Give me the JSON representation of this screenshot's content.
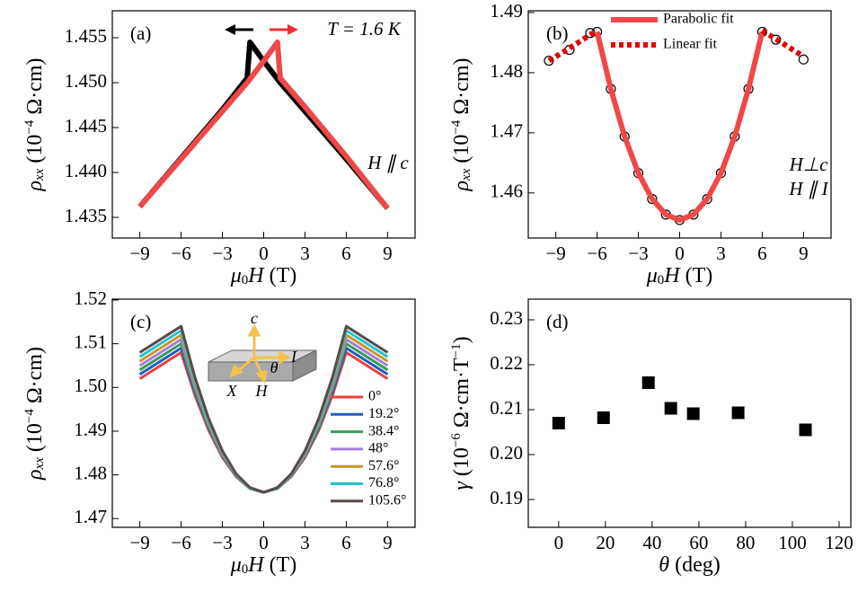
{
  "chart_data": [
    {
      "type": "line",
      "label": "(a)",
      "xlabel": [
        {
          "text": "μ",
          "style": "italic"
        },
        {
          "text": "0",
          "shift": "sub"
        },
        {
          "text": "H",
          "style": "italic"
        },
        {
          "text": " (T)"
        }
      ],
      "ylabel": [
        {
          "text": "ρ",
          "style": "italic"
        },
        {
          "text": "xx",
          "style": "italic",
          "shift": "sub"
        },
        {
          "text": " (10"
        },
        {
          "text": "−4",
          "shift": "sup"
        },
        {
          "text": " Ω·cm)"
        }
      ],
      "annotations": [
        "T = 1.6 K",
        "H ∥ c"
      ],
      "x": [
        -9,
        -6,
        -3,
        -1.2,
        -1,
        0,
        1,
        1.2,
        3,
        6,
        9
      ],
      "series": [
        {
          "color": "#000000",
          "values": [
            1.4362,
            1.4416,
            1.447,
            1.4505,
            1.4545,
            1.4524,
            1.4504,
            1.45,
            1.4468,
            1.4415,
            1.436
          ]
        },
        {
          "color": "#f04848",
          "values": [
            1.4362,
            1.4415,
            1.4468,
            1.45,
            1.4504,
            1.4524,
            1.4545,
            1.4505,
            1.4473,
            1.4418,
            1.436
          ]
        }
      ],
      "xlim": [
        -11,
        11
      ],
      "ylim": [
        1.4327,
        1.458
      ],
      "xticks": [
        {
          "value": -9,
          "label": "−9"
        },
        {
          "value": -6,
          "label": "−6"
        },
        {
          "value": -3,
          "label": "−3"
        },
        0,
        3,
        6,
        9
      ],
      "yticks": [
        {
          "value": 1.435,
          "label": "1.435"
        },
        {
          "value": 1.44,
          "label": "1.440"
        },
        {
          "value": 1.445,
          "label": "1.445"
        },
        {
          "value": 1.45,
          "label": "1.450"
        },
        {
          "value": 1.455,
          "label": "1.455"
        }
      ]
    },
    {
      "type": "line",
      "label": "(b)",
      "xlabel": [
        {
          "text": "μ",
          "style": "italic"
        },
        {
          "text": "0",
          "shift": "sub"
        },
        {
          "text": "H",
          "style": "italic"
        },
        {
          "text": " (T)"
        }
      ],
      "ylabel": [
        {
          "text": "ρ",
          "style": "italic"
        },
        {
          "text": "xx",
          "style": "italic",
          "shift": "sub"
        },
        {
          "text": " (10"
        },
        {
          "text": "−4",
          "shift": "sup"
        },
        {
          "text": " Ω·cm)"
        }
      ],
      "annotations": [
        "H⊥c",
        "H ∥ I"
      ],
      "x": [
        -9.5,
        -8,
        -6.5,
        -6,
        -5,
        -4,
        -3,
        -2,
        -1,
        0,
        1,
        2,
        3,
        4,
        5,
        6,
        7,
        9
      ],
      "series": [
        {
          "color": "#000000",
          "marker": "o",
          "values": [
            1.482,
            1.4838,
            1.4866,
            1.4868,
            1.4773,
            1.4694,
            1.4633,
            1.459,
            1.4564,
            1.4555,
            1.4564,
            1.459,
            1.4633,
            1.4694,
            1.4773,
            1.4868,
            1.4855,
            1.4822
          ]
        },
        {
          "name": "Parabolic fit",
          "color": "#f04848",
          "values": [
            null,
            null,
            null,
            1.4868,
            1.4773,
            1.4694,
            1.4633,
            1.459,
            1.4564,
            1.4555,
            1.4564,
            1.459,
            1.4633,
            1.4694,
            1.4773,
            1.4868,
            null,
            null
          ]
        },
        {
          "name": "Linear fit",
          "color": "#e00000",
          "style": "dotted",
          "values": [
            1.482,
            1.4841,
            1.4863,
            1.487,
            null,
            null,
            null,
            null,
            null,
            null,
            null,
            null,
            null,
            null,
            null,
            1.487,
            1.4856,
            1.4827
          ]
        }
      ],
      "xlim": [
        -11,
        11
      ],
      "ylim": [
        1.4525,
        1.4903
      ],
      "xticks": [
        {
          "value": -9,
          "label": "−9"
        },
        {
          "value": -6,
          "label": "−6"
        },
        {
          "value": -3,
          "label": "−3"
        },
        0,
        3,
        6,
        9
      ],
      "yticks": [
        1.46,
        1.47,
        1.48,
        1.49
      ]
    },
    {
      "type": "line",
      "label": "(c)",
      "xlabel": [
        {
          "text": "μ",
          "style": "italic"
        },
        {
          "text": "0",
          "shift": "sub"
        },
        {
          "text": "H",
          "style": "italic"
        },
        {
          "text": " (T)"
        }
      ],
      "ylabel": [
        {
          "text": "ρ",
          "style": "italic"
        },
        {
          "text": "xx",
          "style": "italic",
          "shift": "sub"
        },
        {
          "text": " (10"
        },
        {
          "text": "−4",
          "shift": "sup"
        },
        {
          "text": " Ω·cm)"
        }
      ],
      "inset_labels": [
        "c",
        "I",
        "θ",
        "X",
        "H"
      ],
      "x": [
        -9,
        -6,
        -5,
        -4,
        -3,
        -2,
        -1,
        0,
        1,
        2,
        3,
        4,
        5,
        6,
        9
      ],
      "series": [
        {
          "name": "0°",
          "color": "#e8413c",
          "values": [
            1.502,
            1.508,
            1.4982,
            1.4902,
            1.484,
            1.4796,
            1.4769,
            1.476,
            1.4769,
            1.4796,
            1.484,
            1.4902,
            1.4982,
            1.508,
            1.502
          ]
        },
        {
          "name": "19.2°",
          "color": "#1f5fbf",
          "values": [
            1.503,
            1.509,
            1.4989,
            1.4907,
            1.4843,
            1.4797,
            1.4769,
            1.476,
            1.4769,
            1.4797,
            1.4843,
            1.4907,
            1.4989,
            1.509,
            1.503
          ]
        },
        {
          "name": "38.4°",
          "color": "#3a9a5a",
          "values": [
            1.504,
            1.51,
            1.4996,
            1.4911,
            1.4845,
            1.4798,
            1.4769,
            1.476,
            1.4769,
            1.4798,
            1.4845,
            1.4911,
            1.4996,
            1.51,
            1.504
          ]
        },
        {
          "name": "48°",
          "color": "#a37fd6",
          "values": [
            1.505,
            1.511,
            1.5003,
            1.4916,
            1.4847,
            1.4799,
            1.477,
            1.476,
            1.477,
            1.4799,
            1.4847,
            1.4916,
            1.5003,
            1.511,
            1.505
          ]
        },
        {
          "name": "57.6°",
          "color": "#c8962a",
          "values": [
            1.506,
            1.512,
            1.501,
            1.492,
            1.485,
            1.48,
            1.477,
            1.476,
            1.477,
            1.48,
            1.485,
            1.492,
            1.501,
            1.512,
            1.506
          ]
        },
        {
          "name": "76.8°",
          "color": "#22c3d0",
          "values": [
            1.507,
            1.513,
            1.5017,
            1.4924,
            1.4853,
            1.4801,
            1.477,
            1.476,
            1.477,
            1.4801,
            1.4853,
            1.4924,
            1.5017,
            1.513,
            1.507
          ]
        },
        {
          "name": "105.6°",
          "color": "#5a4a48",
          "values": [
            1.508,
            1.514,
            1.5024,
            1.4929,
            1.4855,
            1.4802,
            1.4771,
            1.476,
            1.4771,
            1.4802,
            1.4855,
            1.4929,
            1.5024,
            1.514,
            1.508
          ]
        }
      ],
      "xlim": [
        -11,
        11
      ],
      "ylim": [
        1.468,
        1.5202
      ],
      "xticks": [
        {
          "value": -9,
          "label": "−9"
        },
        {
          "value": -6,
          "label": "−6"
        },
        {
          "value": -3,
          "label": "−3"
        },
        0,
        3,
        6,
        9
      ],
      "yticks": [
        1.47,
        1.48,
        1.49,
        {
          "value": 1.5,
          "label": "1.50"
        },
        1.51,
        1.52
      ]
    },
    {
      "type": "scatter",
      "label": "(d)",
      "xlabel": [
        {
          "text": "θ",
          "style": "italic"
        },
        {
          "text": " (deg)"
        }
      ],
      "ylabel": [
        {
          "text": "γ",
          "style": "italic"
        },
        {
          "text": " (10"
        },
        {
          "text": "−6",
          "shift": "sup"
        },
        {
          "text": " Ω·cm·T"
        },
        {
          "text": "−1",
          "shift": "sup"
        },
        {
          "text": ")"
        }
      ],
      "x": [
        0,
        19.2,
        38.4,
        48,
        57.6,
        76.8,
        105.6
      ],
      "series": [
        {
          "color": "#000000",
          "values": [
            0.207,
            0.2082,
            0.216,
            0.2103,
            0.2091,
            0.2093,
            0.2055
          ]
        }
      ],
      "xlim": [
        -13,
        125
      ],
      "ylim": [
        0.1838,
        0.2346
      ],
      "xticks": [
        0,
        20,
        40,
        60,
        80,
        100,
        120
      ],
      "yticks": [
        0.19,
        {
          "value": 0.2,
          "label": "0.20"
        },
        0.21,
        0.22,
        0.23
      ]
    }
  ]
}
